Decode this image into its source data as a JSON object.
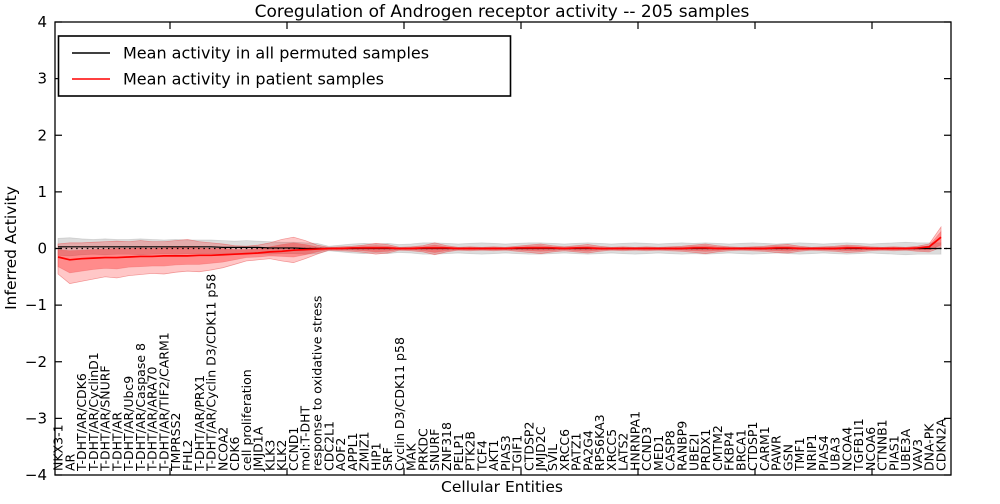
{
  "title": "Coregulation of Androgen receptor activity -- 205 samples",
  "legend": {
    "entries": [
      {
        "label": "Mean activity in all permuted samples",
        "color": "#000000"
      },
      {
        "label": "Mean activity in patient samples",
        "color": "#ff0000"
      }
    ]
  },
  "axes": {
    "ylabel": "Inferred Activity",
    "xlabel": "Cellular Entities"
  },
  "chart_data": {
    "type": "line",
    "title": "Coregulation of Androgen receptor activity -- 205 samples",
    "xlabel": "Cellular Entities",
    "ylabel": "Inferred Activity",
    "ylim": [
      -4,
      4
    ],
    "yticks": [
      4,
      3,
      2,
      1,
      0,
      -1,
      -2,
      -3,
      -4
    ],
    "grid": false,
    "legend_position": "upper left",
    "zero_line": {
      "value": 0,
      "style": "dotted",
      "color": "#000000"
    },
    "categories": [
      "NKX3-1",
      "AR",
      "T-DHT/AR/CDK6",
      "T-DHT/AR/CyclinD1",
      "T-DHT/AR/SNURF",
      "T-DHT/AR",
      "T-DHT/AR/Ubc9",
      "T-DHT/AR/Caspase 8",
      "T-DHT/AR/ARA70",
      "T-DHT/AR/TIF2/CARM1",
      "TMPRSS2",
      "FHL2",
      "T-DHT/AR/PRX1",
      "T-DHT/AR/Cyclin D3/CDK11 p58",
      "NCOA2",
      "CDK6",
      "cell proliferation",
      "JMJD1A",
      "KLK3",
      "KLK2",
      "CCND1",
      "mol:T-DHT",
      "response to oxidative stress",
      "CDC2L1",
      "AOF2",
      "APPL1",
      "ZMIZ1",
      "HIP1",
      "SRF",
      "Cyclin D3/CDK11 p58",
      "MAK",
      "PRKDC",
      "SNURF",
      "ZNF318",
      "PELP1",
      "PTK2B",
      "TCF4",
      "AKT1",
      "PIAS3",
      "TGIF1",
      "CTDSP2",
      "JMJD2C",
      "SVIL",
      "XRCC6",
      "PATZ1",
      "PA2G4",
      "RPS6KA3",
      "XRCC5",
      "LATS2",
      "HNRNPA1",
      "CCND3",
      "MED1",
      "CASP8",
      "RANBP9",
      "UBE2I",
      "PRDX1",
      "CMTM2",
      "FKBP4",
      "BRCA1",
      "CTDSP1",
      "CARM1",
      "PAWR",
      "GSN",
      "TMF1",
      "NRIP1",
      "PIAS4",
      "UBA3",
      "NCOA4",
      "TGFB1I1",
      "NCOA6",
      "CTNNB1",
      "PIAS1",
      "UBE3A",
      "VAV3",
      "DNA-PK",
      "CDKN2A"
    ],
    "series": [
      {
        "name": "Mean activity in all permuted samples",
        "color": "#000000",
        "width": 1.2,
        "values": [
          0.03,
          0.03,
          0.03,
          0.03,
          0.03,
          0.03,
          0.03,
          0.03,
          0.03,
          0.03,
          0.03,
          0.03,
          0.03,
          0.03,
          0.02,
          0.02,
          0.02,
          0.02,
          0.01,
          0.01,
          0.01,
          0,
          0,
          0,
          0,
          0,
          0,
          0,
          0,
          0,
          0,
          0,
          0,
          0,
          0,
          0,
          0,
          0,
          0,
          0,
          0,
          0,
          0,
          0,
          0,
          0,
          0,
          0,
          0,
          0,
          0,
          0,
          0,
          0,
          0,
          0,
          0,
          0,
          0,
          0,
          0,
          0,
          0,
          0,
          0,
          0,
          0,
          0,
          0,
          0,
          0,
          0,
          0,
          0,
          0,
          0
        ]
      },
      {
        "name": "Mean activity in patient samples",
        "color": "#ff0000",
        "width": 1.7,
        "values": [
          -0.15,
          -0.2,
          -0.18,
          -0.17,
          -0.16,
          -0.16,
          -0.15,
          -0.14,
          -0.14,
          -0.13,
          -0.13,
          -0.13,
          -0.12,
          -0.12,
          -0.11,
          -0.1,
          -0.09,
          -0.08,
          -0.06,
          -0.05,
          -0.03,
          -0.02,
          -0.01,
          0,
          0,
          0.01,
          0.01,
          0.01,
          0.01,
          0,
          0,
          0.01,
          0.01,
          0.01,
          0,
          0,
          0,
          0,
          0,
          0.01,
          0.01,
          0.01,
          0.01,
          0,
          0.01,
          0.01,
          0,
          0,
          0,
          0,
          0,
          0,
          0,
          0,
          0.01,
          0.01,
          0,
          0,
          0,
          0,
          0,
          0.01,
          0.01,
          0,
          0,
          0,
          0,
          0.01,
          0.01,
          0,
          0,
          0,
          0,
          0.01,
          0.03,
          0.2
        ]
      }
    ],
    "bands": [
      {
        "name": "permuted-samples-range",
        "fill": "rgba(130,130,130,0.28)",
        "stroke": "rgba(150,150,150,0.35)",
        "high": [
          0.18,
          0.19,
          0.17,
          0.16,
          0.17,
          0.16,
          0.16,
          0.17,
          0.16,
          0.15,
          0.16,
          0.15,
          0.15,
          0.15,
          0.14,
          0.13,
          0.14,
          0.13,
          0.12,
          0.11,
          0.11,
          0.1,
          0.09,
          0.04,
          0.06,
          0.08,
          0.09,
          0.08,
          0.09,
          0.07,
          0.08,
          0.1,
          0.1,
          0.09,
          0.08,
          0.09,
          0.1,
          0.09,
          0.08,
          0.09,
          0.1,
          0.1,
          0.09,
          0.08,
          0.09,
          0.1,
          0.09,
          0.08,
          0.09,
          0.1,
          0.09,
          0.08,
          0.09,
          0.1,
          0.09,
          0.1,
          0.09,
          0.08,
          0.09,
          0.1,
          0.09,
          0.08,
          0.09,
          0.1,
          0.09,
          0.08,
          0.09,
          0.1,
          0.09,
          0.08,
          0.09,
          0.1,
          0.11,
          0.1,
          0.1,
          0.1
        ],
        "low": [
          -0.12,
          -0.13,
          -0.11,
          -0.1,
          -0.11,
          -0.1,
          -0.1,
          -0.11,
          -0.1,
          -0.09,
          -0.1,
          -0.09,
          -0.09,
          -0.09,
          -0.1,
          -0.09,
          -0.1,
          -0.09,
          -0.1,
          -0.09,
          -0.09,
          -0.1,
          -0.09,
          -0.04,
          -0.06,
          -0.08,
          -0.09,
          -0.08,
          -0.09,
          -0.07,
          -0.08,
          -0.1,
          -0.1,
          -0.09,
          -0.08,
          -0.09,
          -0.1,
          -0.09,
          -0.08,
          -0.09,
          -0.1,
          -0.1,
          -0.09,
          -0.08,
          -0.09,
          -0.1,
          -0.09,
          -0.08,
          -0.09,
          -0.1,
          -0.09,
          -0.08,
          -0.09,
          -0.1,
          -0.09,
          -0.1,
          -0.09,
          -0.08,
          -0.09,
          -0.1,
          -0.09,
          -0.08,
          -0.09,
          -0.1,
          -0.09,
          -0.08,
          -0.09,
          -0.1,
          -0.09,
          -0.08,
          -0.09,
          -0.1,
          -0.11,
          -0.1,
          -0.1,
          -0.1
        ]
      },
      {
        "name": "patient-samples-range-outer",
        "fill": "rgba(255,0,0,0.22)",
        "stroke": "rgba(230,80,80,0.55)",
        "high": [
          0.08,
          0.1,
          0.1,
          0.11,
          0.12,
          0.13,
          0.12,
          0.14,
          0.12,
          0.12,
          0.14,
          0.16,
          0.12,
          0.1,
          0.08,
          0.05,
          0.04,
          0.06,
          0.1,
          0.16,
          0.2,
          0.14,
          0.06,
          0.02,
          0.03,
          0.04,
          0.06,
          0.09,
          0.07,
          0.02,
          0.03,
          0.05,
          0.1,
          0.05,
          0.02,
          0.03,
          0.02,
          0.03,
          0.02,
          0.04,
          0.06,
          0.08,
          0.05,
          0.03,
          0.05,
          0.07,
          0.04,
          0.02,
          0.03,
          0.02,
          0.03,
          0.02,
          0.03,
          0.04,
          0.06,
          0.08,
          0.05,
          0.03,
          0.02,
          0.03,
          0.04,
          0.06,
          0.07,
          0.04,
          0.02,
          0.03,
          0.04,
          0.06,
          0.05,
          0.03,
          0.02,
          0.03,
          0.02,
          0.04,
          0.08,
          0.38
        ],
        "low": [
          -0.45,
          -0.62,
          -0.58,
          -0.54,
          -0.5,
          -0.52,
          -0.48,
          -0.46,
          -0.44,
          -0.45,
          -0.42,
          -0.4,
          -0.41,
          -0.38,
          -0.34,
          -0.28,
          -0.22,
          -0.2,
          -0.18,
          -0.22,
          -0.25,
          -0.18,
          -0.1,
          -0.03,
          -0.04,
          -0.05,
          -0.07,
          -0.1,
          -0.08,
          -0.03,
          -0.04,
          -0.06,
          -0.11,
          -0.06,
          -0.03,
          -0.04,
          -0.03,
          -0.04,
          -0.03,
          -0.05,
          -0.07,
          -0.09,
          -0.06,
          -0.04,
          -0.06,
          -0.08,
          -0.05,
          -0.03,
          -0.04,
          -0.03,
          -0.04,
          -0.03,
          -0.04,
          -0.05,
          -0.07,
          -0.09,
          -0.06,
          -0.04,
          -0.03,
          -0.04,
          -0.05,
          -0.07,
          -0.08,
          -0.05,
          -0.03,
          -0.04,
          -0.05,
          -0.07,
          -0.06,
          -0.04,
          -0.03,
          -0.04,
          -0.03,
          -0.05,
          -0.06,
          0.02
        ]
      },
      {
        "name": "patient-samples-range-inner",
        "fill": "rgba(255,0,0,0.30)",
        "stroke": "rgba(235,90,90,0.4)",
        "high": [
          -0.02,
          -0.04,
          -0.03,
          -0.02,
          -0.01,
          0.0,
          0.0,
          0.01,
          0.0,
          0.01,
          0.02,
          0.03,
          0.01,
          0.0,
          0.0,
          -0.02,
          -0.02,
          0.0,
          0.03,
          0.07,
          0.1,
          0.07,
          0.03,
          0.01,
          0.02,
          0.02,
          0.04,
          0.05,
          0.04,
          0.01,
          0.02,
          0.03,
          0.06,
          0.03,
          0.01,
          0.02,
          0.01,
          0.02,
          0.01,
          0.02,
          0.04,
          0.05,
          0.03,
          0.02,
          0.03,
          0.04,
          0.02,
          0.01,
          0.02,
          0.01,
          0.02,
          0.01,
          0.02,
          0.02,
          0.04,
          0.05,
          0.03,
          0.02,
          0.01,
          0.02,
          0.02,
          0.04,
          0.04,
          0.02,
          0.01,
          0.02,
          0.02,
          0.04,
          0.03,
          0.02,
          0.01,
          0.02,
          0.01,
          0.02,
          0.05,
          0.3
        ],
        "low": [
          -0.32,
          -0.43,
          -0.4,
          -0.37,
          -0.35,
          -0.36,
          -0.33,
          -0.32,
          -0.31,
          -0.31,
          -0.29,
          -0.28,
          -0.28,
          -0.26,
          -0.24,
          -0.2,
          -0.16,
          -0.15,
          -0.13,
          -0.14,
          -0.15,
          -0.11,
          -0.06,
          -0.02,
          -0.02,
          -0.03,
          -0.04,
          -0.06,
          -0.05,
          -0.02,
          -0.02,
          -0.04,
          -0.07,
          -0.04,
          -0.02,
          -0.02,
          -0.02,
          -0.02,
          -0.02,
          -0.03,
          -0.04,
          -0.05,
          -0.04,
          -0.02,
          -0.04,
          -0.05,
          -0.03,
          -0.02,
          -0.02,
          -0.02,
          -0.02,
          -0.02,
          -0.02,
          -0.03,
          -0.04,
          -0.05,
          -0.04,
          -0.02,
          -0.02,
          -0.02,
          -0.03,
          -0.04,
          -0.05,
          -0.03,
          -0.02,
          -0.02,
          -0.03,
          -0.04,
          -0.04,
          -0.02,
          -0.02,
          -0.02,
          -0.02,
          -0.03,
          -0.03,
          0.06
        ]
      }
    ]
  }
}
